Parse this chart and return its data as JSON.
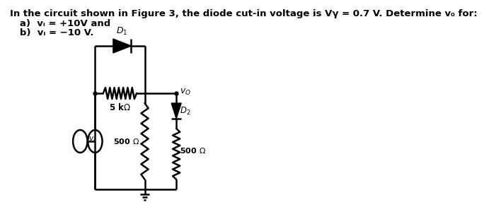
{
  "title_line1": "In the circuit shown in Figure 3, the diode cut-in voltage is Vγ = 0.7 V. Determine v₀ for:",
  "title_line2a": "   a)  vᵢ = +10V and",
  "title_line2b": "   b)  vᵢ = −10 V.",
  "bg_color": "#ffffff",
  "text_color": "#000000",
  "circuit_color": "#000000",
  "lw": 1.8,
  "font_size": 9.5
}
